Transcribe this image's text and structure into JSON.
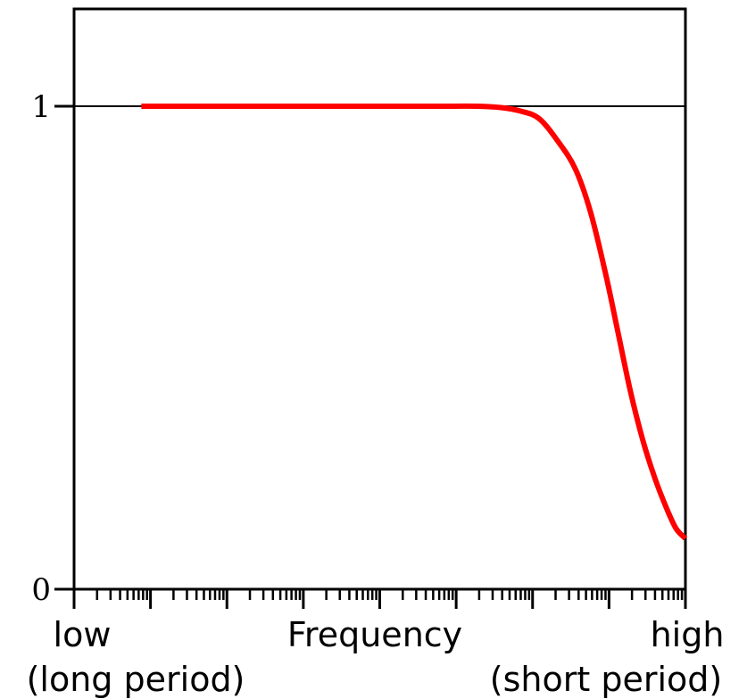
{
  "chart_data": {
    "type": "line",
    "xlabel": "Frequency",
    "x_ends": {
      "low": {
        "line1": "low",
        "line2": "(long period)"
      },
      "high": {
        "line1": "high",
        "line2": "(short period)"
      }
    },
    "x_scale": "log",
    "x_decades": 8,
    "ylim": [
      0,
      1
    ],
    "y_ticks": [
      {
        "value": 0,
        "label": "0"
      },
      {
        "value": 1,
        "label": "1"
      }
    ],
    "reference_line": {
      "y": 1
    },
    "grid": false,
    "legend": "none",
    "series": [
      {
        "color": "#ff0000",
        "points": [
          [
            0.11,
            1.0
          ],
          [
            0.2,
            1.0
          ],
          [
            0.3,
            1.0
          ],
          [
            0.4,
            1.0
          ],
          [
            0.5,
            1.0
          ],
          [
            0.55,
            1.0
          ],
          [
            0.6,
            1.0
          ],
          [
            0.66,
            1.0
          ],
          [
            0.7,
            0.997
          ],
          [
            0.73,
            0.99
          ],
          [
            0.76,
            0.975
          ],
          [
            0.79,
            0.93
          ],
          [
            0.82,
            0.87
          ],
          [
            0.845,
            0.78
          ],
          [
            0.87,
            0.65
          ],
          [
            0.89,
            0.53
          ],
          [
            0.91,
            0.41
          ],
          [
            0.93,
            0.31
          ],
          [
            0.95,
            0.23
          ],
          [
            0.97,
            0.165
          ],
          [
            0.985,
            0.125
          ],
          [
            1.0,
            0.105
          ]
        ]
      }
    ]
  },
  "colors": {
    "series": "#ff0000",
    "axis": "#000000",
    "background": "#ffffff"
  }
}
